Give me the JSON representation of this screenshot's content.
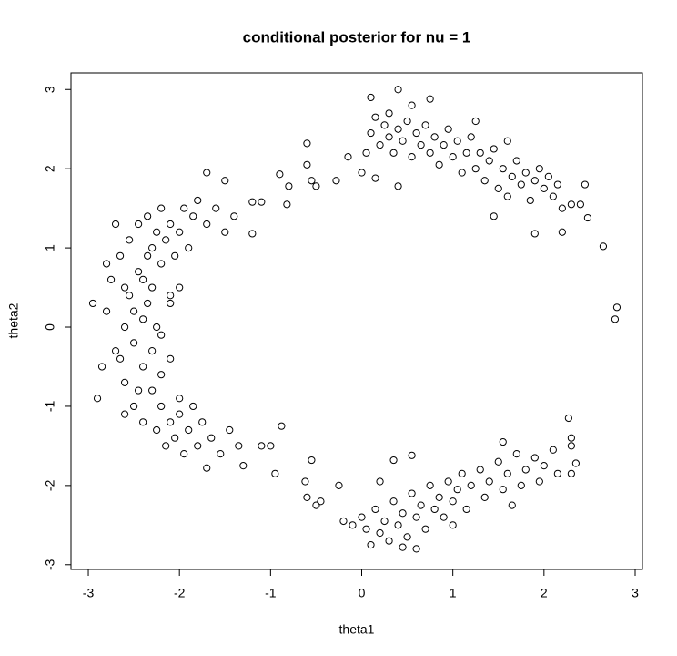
{
  "chart_data": {
    "type": "scatter",
    "title": "conditional posterior for nu = 1",
    "x_label": "theta1",
    "y_label": "theta2",
    "xlim": [
      -3.19,
      3.08
    ],
    "ylim": [
      -3.06,
      3.21
    ],
    "xticks": [
      -3,
      -2,
      -1,
      0,
      1,
      2,
      3
    ],
    "yticks": [
      -3,
      -2,
      -1,
      0,
      1,
      2,
      3
    ],
    "color": "#000000",
    "x": [
      -2.95,
      -2.85,
      -2.8,
      -2.75,
      -2.7,
      -2.65,
      -2.6,
      -2.6,
      -2.55,
      -2.55,
      -2.5,
      -2.5,
      -2.45,
      -2.45,
      -2.4,
      -2.4,
      -2.4,
      -2.35,
      -2.35,
      -2.3,
      -2.3,
      -2.3,
      -2.25,
      -2.25,
      -2.2,
      -2.2,
      -2.2,
      -2.15,
      -2.15,
      -2.1,
      -2.1,
      -2.05,
      -2.05,
      -2.0,
      -2.0,
      -1.95,
      -1.95,
      -1.9,
      -1.9,
      -1.85,
      -1.85,
      -1.8,
      -1.8,
      -1.75,
      -1.7,
      -1.65,
      -1.6,
      -1.55,
      -1.5,
      -1.45,
      -1.4,
      -1.35,
      -2.6,
      -2.65,
      -2.5,
      -2.45,
      -2.35,
      -2.3,
      -2.4,
      -2.2,
      -2.25,
      -2.9,
      -2.8,
      -2.7,
      -2.6,
      -2.1,
      -2.2,
      -2.0,
      -2.0,
      -2.1,
      -2.1,
      -1.7,
      -1.5,
      -1.2,
      -1.1,
      -1.2,
      -1.1,
      -1.0,
      -0.95,
      -0.88,
      -1.3,
      -1.7,
      -0.9,
      -0.8,
      -0.6,
      -0.6,
      -0.55,
      -0.5,
      -0.28,
      -0.15,
      -0.82,
      -0.62,
      -0.55,
      -0.6,
      -0.45,
      -0.5,
      -0.25,
      -0.2,
      -0.1,
      2.8,
      2.78,
      2.65,
      2.45,
      2.4,
      2.48,
      2.2,
      2.27,
      2.3,
      2.3,
      2.35,
      2.3,
      0.05,
      0.1,
      0.15,
      0.2,
      0.25,
      0.3,
      0.3,
      0.35,
      0.4,
      0.45,
      0.5,
      0.55,
      0.6,
      0.65,
      0.7,
      0.75,
      0.8,
      0.85,
      0.9,
      0.95,
      1.0,
      1.05,
      1.1,
      1.15,
      1.2,
      1.25,
      1.3,
      1.35,
      1.4,
      1.45,
      1.5,
      1.55,
      1.6,
      1.65,
      1.7,
      1.75,
      1.8,
      1.85,
      1.9,
      1.95,
      2.0,
      2.05,
      2.1,
      2.15,
      0.4,
      0.1,
      0.0,
      0.15,
      0.4,
      0.75,
      1.45,
      1.9,
      0.55,
      1.25,
      1.6,
      2.2,
      2.3,
      0.0,
      0.05,
      0.1,
      0.15,
      0.2,
      0.25,
      0.3,
      0.35,
      0.4,
      0.45,
      0.5,
      0.55,
      0.6,
      0.65,
      0.7,
      0.75,
      0.8,
      0.85,
      0.9,
      0.95,
      1.0,
      1.05,
      1.1,
      1.15,
      1.2,
      1.3,
      1.35,
      1.4,
      1.5,
      1.55,
      1.6,
      1.7,
      1.75,
      1.8,
      1.9,
      1.95,
      2.0,
      2.1,
      2.15,
      0.35,
      0.55,
      0.2,
      1.55,
      1.65,
      0.6,
      0.45,
      1.0
    ],
    "y": [
      0.3,
      -0.5,
      0.2,
      0.6,
      -0.3,
      0.9,
      0.0,
      -0.7,
      0.4,
      1.1,
      -0.2,
      -1.0,
      0.7,
      1.3,
      0.1,
      -0.5,
      -1.2,
      0.9,
      1.4,
      -0.8,
      0.5,
      1.0,
      -1.3,
      1.2,
      -1.0,
      0.8,
      1.5,
      -1.5,
      1.1,
      -1.2,
      1.3,
      -1.4,
      0.9,
      -1.1,
      1.2,
      -1.6,
      1.5,
      -1.3,
      1.0,
      -1.0,
      1.4,
      -1.5,
      1.6,
      -1.2,
      1.3,
      -1.4,
      1.5,
      -1.6,
      1.2,
      -1.3,
      1.4,
      -1.5,
      0.5,
      -0.4,
      0.2,
      -0.8,
      0.3,
      -0.3,
      0.6,
      -0.6,
      0.0,
      -0.9,
      0.8,
      1.3,
      -1.1,
      0.4,
      -0.1,
      -0.9,
      0.5,
      0.3,
      -0.4,
      1.95,
      1.85,
      1.58,
      1.58,
      1.18,
      -1.5,
      -1.5,
      -1.85,
      -1.25,
      -1.75,
      -1.78,
      1.93,
      1.78,
      2.32,
      2.05,
      1.85,
      1.78,
      1.85,
      2.15,
      1.55,
      -1.95,
      -1.68,
      -2.15,
      -2.2,
      -2.25,
      -2.0,
      -2.45,
      -2.5,
      0.25,
      0.1,
      1.02,
      1.8,
      1.55,
      1.38,
      1.2,
      -1.15,
      -1.4,
      -1.5,
      -1.72,
      -1.85,
      2.2,
      2.45,
      2.65,
      2.3,
      2.55,
      2.4,
      2.7,
      2.2,
      2.5,
      2.35,
      2.6,
      2.15,
      2.45,
      2.3,
      2.55,
      2.2,
      2.4,
      2.05,
      2.3,
      2.5,
      2.15,
      2.35,
      1.95,
      2.2,
      2.4,
      2.0,
      2.2,
      1.85,
      2.1,
      2.25,
      1.75,
      2.0,
      1.65,
      1.9,
      2.1,
      1.8,
      1.95,
      1.6,
      1.85,
      2.0,
      1.75,
      1.9,
      1.65,
      1.8,
      3.0,
      2.9,
      1.95,
      1.88,
      1.78,
      2.88,
      1.4,
      1.18,
      2.8,
      2.6,
      2.35,
      1.5,
      1.55,
      -2.4,
      -2.55,
      -2.75,
      -2.3,
      -2.6,
      -2.45,
      -2.7,
      -2.2,
      -2.5,
      -2.35,
      -2.65,
      -2.1,
      -2.4,
      -2.25,
      -2.55,
      -2.0,
      -2.3,
      -2.15,
      -2.4,
      -1.95,
      -2.2,
      -2.05,
      -1.85,
      -2.3,
      -2.0,
      -1.8,
      -2.15,
      -1.95,
      -1.7,
      -2.05,
      -1.85,
      -1.6,
      -2.0,
      -1.8,
      -1.65,
      -1.95,
      -1.75,
      -1.55,
      -1.85,
      -1.68,
      -1.62,
      -1.95,
      -1.45,
      -2.25,
      -2.8,
      -2.78,
      -2.5
    ]
  }
}
